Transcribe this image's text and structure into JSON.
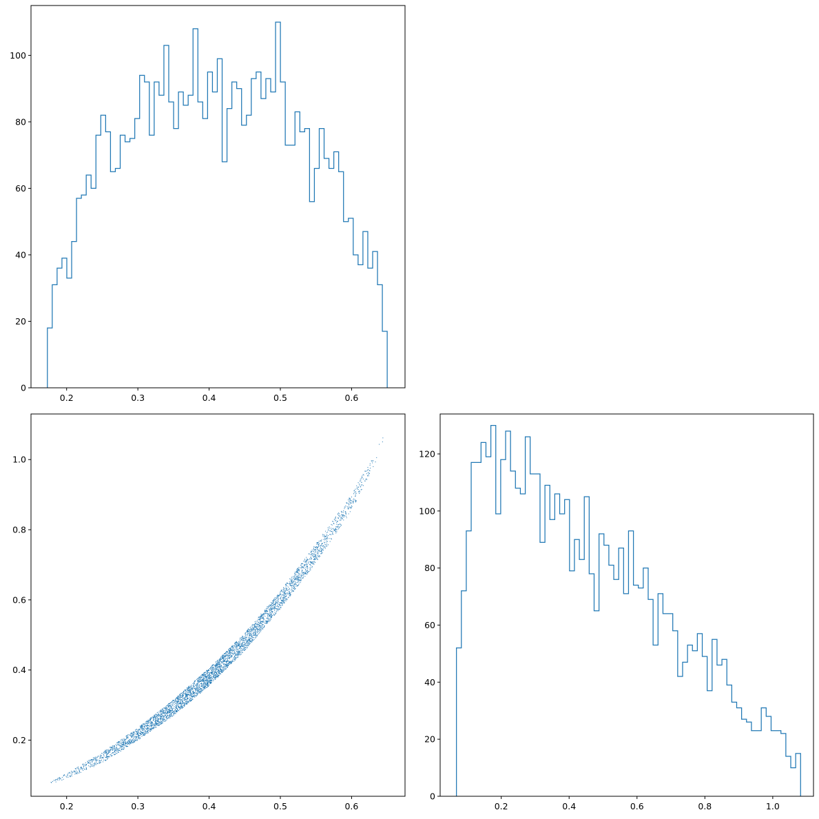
{
  "colors": {
    "series": "#1f77b4",
    "axes": "#000000",
    "background": "#ffffff"
  },
  "chart_data": [
    {
      "type": "bar",
      "histtype": "step",
      "position": "top-left",
      "title": "",
      "xlabel": "",
      "ylabel": "",
      "xlim": [
        0.15,
        0.675
      ],
      "ylim": [
        0,
        115
      ],
      "xticks": [
        "0.2",
        "0.3",
        "0.4",
        "0.5",
        "0.6"
      ],
      "yticks": [
        "0",
        "20",
        "40",
        "60",
        "80",
        "100"
      ],
      "bin_range": [
        0.173,
        0.65
      ],
      "counts": [
        18,
        31,
        36,
        39,
        33,
        44,
        57,
        58,
        64,
        60,
        76,
        82,
        77,
        65,
        66,
        76,
        74,
        75,
        81,
        94,
        92,
        76,
        92,
        88,
        103,
        86,
        78,
        89,
        85,
        88,
        108,
        86,
        81,
        95,
        89,
        99,
        68,
        84,
        92,
        90,
        79,
        82,
        93,
        95,
        87,
        93,
        89,
        110,
        92,
        73,
        73,
        83,
        77,
        78,
        56,
        66,
        78,
        69,
        66,
        71,
        65,
        50,
        51,
        40,
        37,
        47,
        36,
        41,
        31,
        17
      ]
    },
    {
      "type": "scatter",
      "position": "bottom-left",
      "title": "",
      "xlabel": "",
      "ylabel": "",
      "xlim": [
        0.15,
        0.675
      ],
      "ylim": [
        0.04,
        1.13
      ],
      "xticks": [
        "0.2",
        "0.3",
        "0.4",
        "0.5",
        "0.6"
      ],
      "yticks": [
        "0.2",
        "0.4",
        "0.6",
        "0.8",
        "1.0"
      ],
      "band": {
        "x": [
          0.173,
          0.2,
          0.25,
          0.3,
          0.35,
          0.4,
          0.45,
          0.5,
          0.55,
          0.6,
          0.65
        ],
        "y_upper": [
          0.078,
          0.105,
          0.165,
          0.235,
          0.315,
          0.405,
          0.505,
          0.625,
          0.76,
          0.9,
          1.085
        ],
        "y_lower": [
          0.073,
          0.09,
          0.135,
          0.2,
          0.27,
          0.355,
          0.455,
          0.575,
          0.705,
          0.855,
          1.06
        ]
      }
    },
    {
      "type": "bar",
      "histtype": "step",
      "position": "bottom-right",
      "title": "",
      "xlabel": "",
      "ylabel": "",
      "xlim": [
        0.02,
        1.12
      ],
      "ylim": [
        0,
        134
      ],
      "xticks": [
        "0.2",
        "0.4",
        "0.6",
        "0.8",
        "1.0"
      ],
      "yticks": [
        "0",
        "20",
        "40",
        "60",
        "80",
        "100",
        "120"
      ],
      "bin_range": [
        0.068,
        1.082
      ],
      "counts": [
        52,
        72,
        93,
        117,
        117,
        124,
        119,
        130,
        99,
        118,
        128,
        114,
        108,
        106,
        126,
        113,
        113,
        89,
        109,
        97,
        106,
        99,
        104,
        79,
        90,
        83,
        105,
        78,
        65,
        92,
        88,
        81,
        76,
        87,
        71,
        93,
        74,
        73,
        80,
        69,
        53,
        71,
        64,
        64,
        58,
        42,
        47,
        53,
        51,
        57,
        49,
        37,
        55,
        46,
        48,
        39,
        33,
        31,
        27,
        26,
        23,
        23,
        31,
        28,
        23,
        23,
        22,
        14,
        10,
        15
      ]
    }
  ]
}
